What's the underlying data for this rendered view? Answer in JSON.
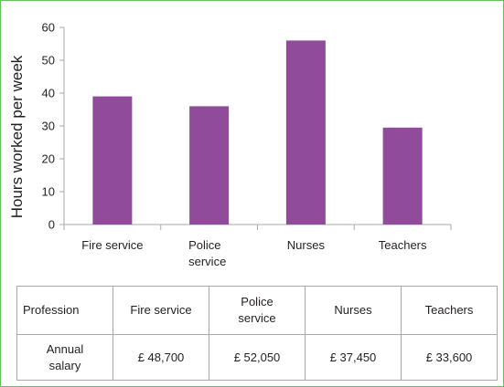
{
  "chart_data": {
    "type": "bar",
    "categories": [
      "Fire service",
      "Police\nservice",
      "Nurses",
      "Teachers"
    ],
    "values": [
      39,
      36,
      56,
      29.5
    ],
    "title": "",
    "xlabel": "",
    "ylabel": "Hours worked per week",
    "ylim": [
      0,
      60
    ],
    "yticks": [
      0,
      10,
      20,
      30,
      40,
      50,
      60
    ],
    "grid": false,
    "bar_color": "#904b9b"
  },
  "table": {
    "header": [
      "Profession",
      "Fire service",
      "Police\nservice",
      "Nurses",
      "Teachers"
    ],
    "row": [
      "Annual\nsalary",
      "£ 48,700",
      "£ 52,050",
      "£ 37,450",
      "£ 33,600"
    ]
  },
  "colors": {
    "frame_border": "#63c25c",
    "axis": "#a7a9ac"
  }
}
